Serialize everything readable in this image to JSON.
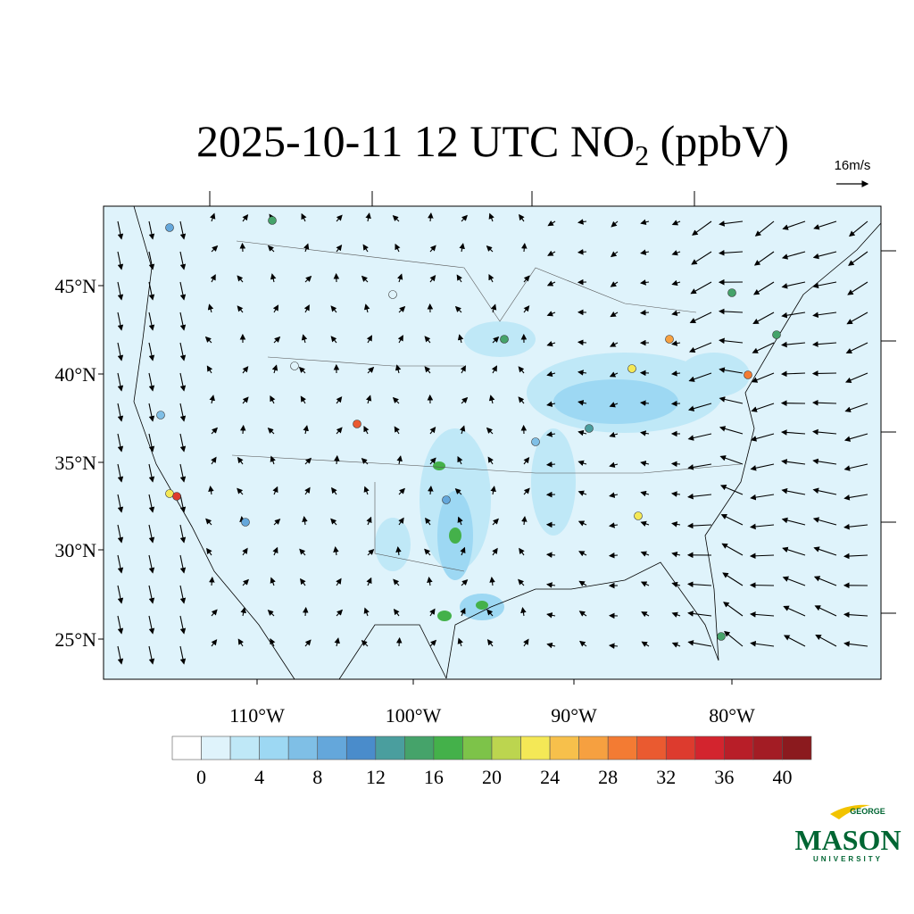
{
  "title": {
    "main": "2025-10-11 12 UTC NO",
    "sub": "2",
    "tail": " (ppbV)"
  },
  "wind_reference": "16m/s",
  "lat_labels": [
    "45°N",
    "40°N",
    "35°N",
    "30°N",
    "25°N"
  ],
  "lon_labels": [
    "110°W",
    "100°W",
    "90°W",
    "80°W"
  ],
  "colorbar": {
    "range": [
      -2,
      42
    ],
    "ticks": [
      0,
      4,
      8,
      12,
      16,
      20,
      24,
      28,
      32,
      36,
      40
    ],
    "colors": [
      "#ffffff",
      "#dff3fb",
      "#bfe8f7",
      "#9dd8f3",
      "#7fbfe6",
      "#64a7db",
      "#4a8ccb",
      "#4a9e9e",
      "#45a36a",
      "#44b14a",
      "#7dc349",
      "#bcd54f",
      "#f4e856",
      "#f7c04b",
      "#f6a040",
      "#f37b33",
      "#ea5a30",
      "#dd3b2e",
      "#d3242e",
      "#b81e28",
      "#a31c24",
      "#8b1a1e"
    ]
  },
  "logo": {
    "top": "GEORGE",
    "main": "MASON",
    "bottom": "UNIVERSITY"
  }
}
